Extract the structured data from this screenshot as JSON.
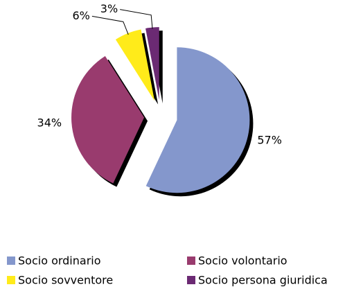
{
  "chart_data": {
    "type": "pie",
    "categories": [
      "Socio ordinario",
      "Socio volontario",
      "Socio sovventore",
      "Socio persona giuridica"
    ],
    "values": [
      57,
      34,
      6,
      3
    ],
    "value_labels": [
      "57%",
      "34%",
      "6%",
      "3%"
    ],
    "colors": [
      "#8497cc",
      "#993b6e",
      "#ffeb1a",
      "#6b2a73"
    ],
    "legend": "bottom"
  }
}
